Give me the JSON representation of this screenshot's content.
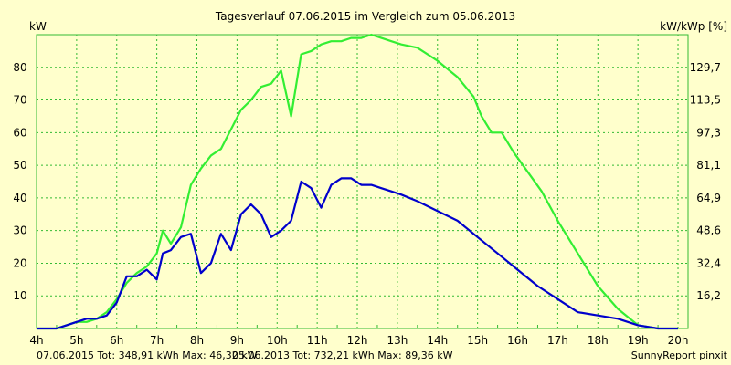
{
  "chart_data": {
    "type": "line",
    "title": "Tagesverlauf 07.06.2015 im Vergleich zum 05.06.2013",
    "ylabel_left": "kW",
    "ylabel_right": "kW/kWp [%]",
    "xlim": [
      4,
      20.25
    ],
    "ylim": [
      0,
      90
    ],
    "grid": true,
    "x_ticks": [
      4,
      5,
      6,
      7,
      8,
      9,
      10,
      11,
      12,
      13,
      14,
      15,
      16,
      17,
      18,
      19,
      20
    ],
    "x_tick_labels": [
      "4h",
      "5h",
      "6h",
      "7h",
      "8h",
      "9h",
      "10h",
      "11h",
      "12h",
      "13h",
      "14h",
      "15h",
      "16h",
      "17h",
      "18h",
      "19h",
      "20h"
    ],
    "y_ticks": [
      10,
      20,
      30,
      40,
      50,
      60,
      70,
      80
    ],
    "y_tick_labels": [
      "10",
      "20",
      "30",
      "40",
      "50",
      "60",
      "70",
      "80"
    ],
    "y2_ticks": [
      10,
      20,
      30,
      40,
      50,
      60,
      70,
      80
    ],
    "y2_tick_labels": [
      "16,2",
      "32,4",
      "48,6",
      "64,9",
      "81,1",
      "97,3",
      "113,5",
      "129,7"
    ],
    "series": [
      {
        "name": "07.06.2015",
        "color": "#0000cc",
        "x": [
          4,
          4.5,
          4.75,
          5,
          5.25,
          5.5,
          5.75,
          6,
          6.25,
          6.5,
          6.75,
          7,
          7.15,
          7.35,
          7.6,
          7.85,
          8.1,
          8.35,
          8.6,
          8.85,
          9.1,
          9.35,
          9.6,
          9.85,
          10.1,
          10.35,
          10.6,
          10.85,
          11.1,
          11.35,
          11.6,
          11.85,
          12.1,
          12.35,
          12.6,
          12.85,
          13.1,
          13.5,
          14,
          14.5,
          15,
          15.5,
          16,
          16.5,
          17,
          17.5,
          18,
          18.5,
          19,
          19.5,
          19.75,
          20
        ],
        "values": [
          0,
          0,
          1,
          2,
          3,
          3,
          4,
          8,
          16,
          16,
          18,
          15,
          23,
          24,
          28,
          29,
          17,
          20,
          29,
          24,
          35,
          38,
          35,
          28,
          30,
          33,
          45,
          43,
          37,
          44,
          46,
          46,
          44,
          44,
          43,
          42,
          41,
          39,
          36,
          33,
          28,
          23,
          18,
          13,
          9,
          5,
          4,
          3,
          1,
          0,
          0,
          0
        ]
      },
      {
        "name": "05.06.2013",
        "color": "#33ee33",
        "x": [
          4,
          4.5,
          4.75,
          5,
          5.25,
          5.5,
          5.75,
          6,
          6.25,
          6.5,
          6.75,
          7,
          7.15,
          7.35,
          7.6,
          7.85,
          8.1,
          8.35,
          8.6,
          8.85,
          9.1,
          9.35,
          9.6,
          9.85,
          10.1,
          10.35,
          10.6,
          10.85,
          11.1,
          11.35,
          11.6,
          11.85,
          12.1,
          12.35,
          12.6,
          12.85,
          13.1,
          13.5,
          14,
          14.5,
          14.9,
          15.1,
          15.35,
          15.6,
          15.9,
          16.25,
          16.6,
          17,
          17.5,
          18,
          18.5,
          19,
          19.5,
          19.75,
          20
        ],
        "values": [
          0,
          0,
          1,
          2,
          2,
          3,
          5,
          9,
          14,
          17,
          19,
          23,
          30,
          26,
          31,
          44,
          49,
          53,
          55,
          61,
          67,
          70,
          74,
          75,
          79,
          65,
          84,
          85,
          87,
          88,
          88,
          89,
          89,
          90,
          89,
          88,
          87,
          86,
          82,
          77,
          71,
          65,
          60,
          60,
          54,
          48,
          42,
          33,
          23,
          13,
          6,
          1,
          0,
          0,
          0
        ]
      }
    ]
  },
  "footer": {
    "series1_label": "07.06.2015 Tot: 348,91 kWh Max: 46,32 kW",
    "series2_label": "05.06.2013 Tot: 732,21 kWh Max: 89,36 kW",
    "credit": "SunnyReport pinxit"
  },
  "colors": {
    "background": "#ffffcc",
    "grid": "#33bb33",
    "series1": "#0000cc",
    "series2": "#33ee33"
  }
}
